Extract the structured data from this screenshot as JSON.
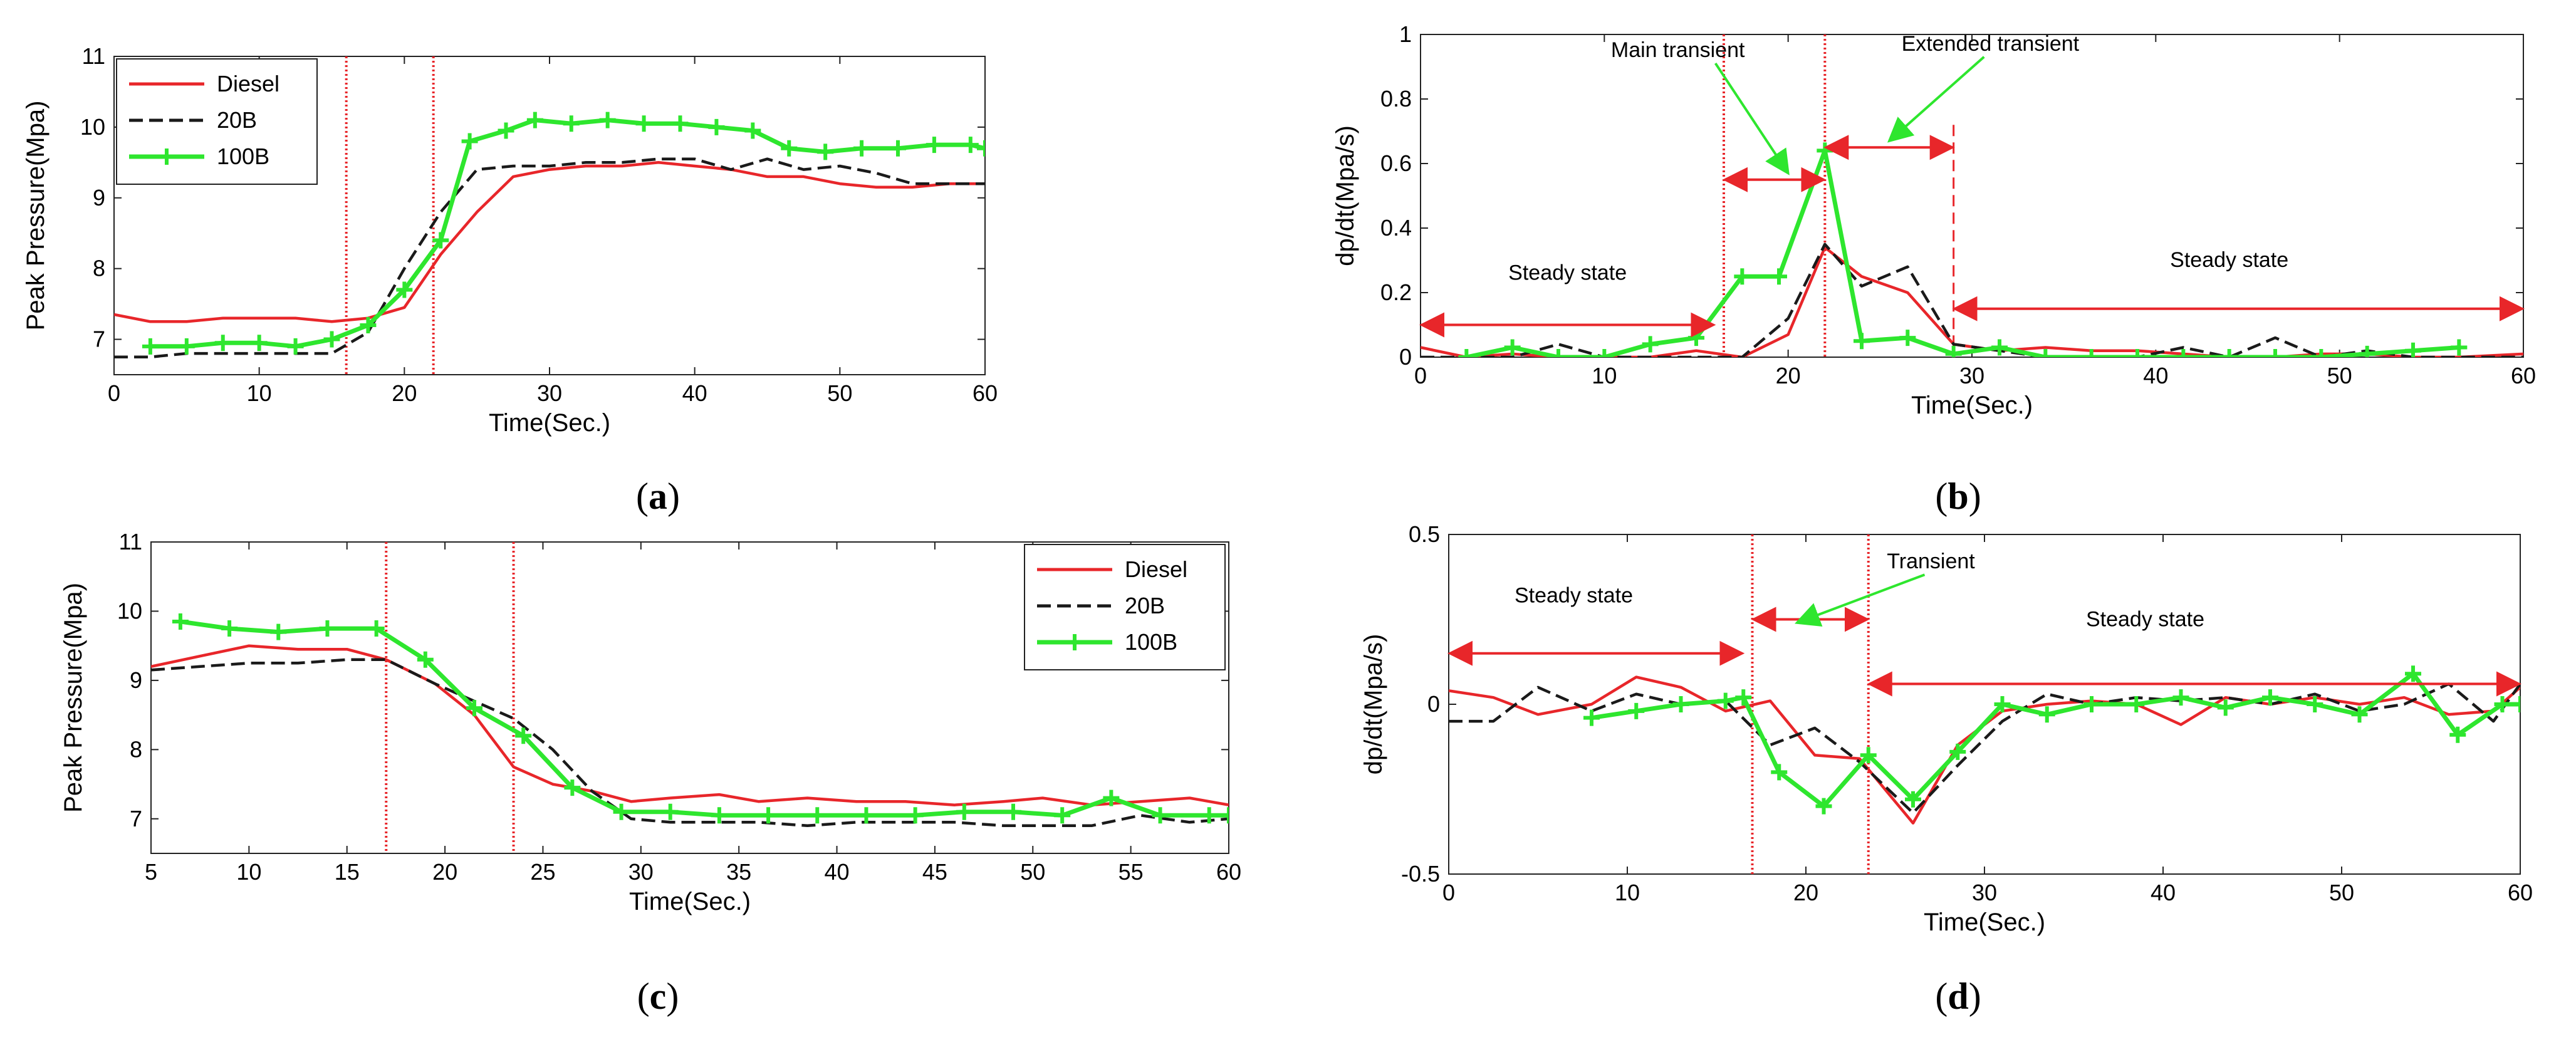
{
  "colors": {
    "diesel": "#e8262a",
    "b20": "#1a1a1a",
    "b100": "#2ee62e",
    "marker_line": "#e8262a",
    "annotation": "#e8262a",
    "callout": "#2ee62e"
  },
  "chart_data": [
    {
      "id": "a",
      "type": "line",
      "caption": {
        "open": "(",
        "letter": "a",
        "close": ")"
      },
      "xlabel": "Time(Sec.)",
      "ylabel": "Peak Pressure(Mpa)",
      "xlim": [
        0,
        60
      ],
      "ylim": [
        6.5,
        11
      ],
      "xticks": [
        0,
        10,
        20,
        30,
        40,
        50,
        60
      ],
      "xtick_labels": [
        "0",
        "10",
        "20",
        "30",
        "40",
        "50",
        "60"
      ],
      "yticks": [
        7,
        8,
        9,
        10,
        11
      ],
      "ytick_labels": [
        "7",
        "8",
        "9",
        "10",
        "11"
      ],
      "legend": {
        "position": "top-left",
        "entries": [
          "Diesel",
          "20B",
          "100B"
        ]
      },
      "vlines": [
        16,
        22
      ],
      "series": [
        {
          "name": "Diesel",
          "color_key": "diesel",
          "style": "solid",
          "x": [
            0,
            2.5,
            5,
            7.5,
            10,
            12.5,
            15,
            17.5,
            20,
            22.5,
            25,
            27.5,
            30,
            32.5,
            35,
            37.5,
            40,
            42.5,
            45,
            47.5,
            50,
            52.5,
            55,
            57.5,
            60
          ],
          "y": [
            7.35,
            7.25,
            7.25,
            7.3,
            7.3,
            7.3,
            7.25,
            7.3,
            7.45,
            8.2,
            8.8,
            9.3,
            9.4,
            9.45,
            9.45,
            9.5,
            9.45,
            9.4,
            9.3,
            9.3,
            9.2,
            9.15,
            9.15,
            9.2,
            9.2
          ]
        },
        {
          "name": "20B",
          "color_key": "b20",
          "style": "dashed",
          "x": [
            0,
            2.5,
            5,
            7.5,
            10,
            12.5,
            15,
            17.5,
            20,
            22.5,
            25,
            27.5,
            30,
            32.5,
            35,
            37.5,
            40,
            42.5,
            45,
            47.5,
            50,
            52.5,
            55,
            57.5,
            60
          ],
          "y": [
            6.75,
            6.75,
            6.8,
            6.8,
            6.8,
            6.8,
            6.8,
            7.1,
            8.0,
            8.8,
            9.4,
            9.45,
            9.45,
            9.5,
            9.5,
            9.55,
            9.55,
            9.4,
            9.55,
            9.4,
            9.45,
            9.35,
            9.2,
            9.2,
            9.2
          ]
        },
        {
          "name": "100B",
          "color_key": "b100",
          "style": "solid-marker",
          "x": [
            2.5,
            5,
            7.5,
            10,
            12.5,
            15,
            17.5,
            20,
            22.5,
            24.5,
            27,
            29,
            31.5,
            34,
            36.5,
            39,
            41.5,
            44,
            46.5,
            49,
            51.5,
            54,
            56.5,
            59,
            60
          ],
          "y": [
            6.9,
            6.9,
            6.95,
            6.95,
            6.9,
            7.0,
            7.2,
            7.7,
            8.4,
            9.8,
            9.95,
            10.1,
            10.05,
            10.1,
            10.05,
            10.05,
            10.0,
            9.95,
            9.7,
            9.65,
            9.7,
            9.7,
            9.75,
            9.75,
            9.7
          ]
        }
      ]
    },
    {
      "id": "b",
      "type": "line",
      "caption": {
        "open": "(",
        "letter": "b",
        "close": ")"
      },
      "xlabel": "Time(Sec.)",
      "ylabel": "dp/dt(Mpa/s)",
      "xlim": [
        0,
        60
      ],
      "ylim": [
        0,
        1
      ],
      "xticks": [
        0,
        10,
        20,
        30,
        40,
        50,
        60
      ],
      "xtick_labels": [
        "0",
        "10",
        "20",
        "30",
        "40",
        "50",
        "60"
      ],
      "yticks": [
        0,
        0.2,
        0.4,
        0.6,
        0.8,
        1
      ],
      "ytick_labels": [
        "0",
        "0.2",
        "0.4",
        "0.6",
        "0.8",
        "1"
      ],
      "vlines": [
        16.5,
        22
      ],
      "dashed_vlines": [
        29
      ],
      "annotations": [
        {
          "text": "Steady state",
          "arrow_from": 0,
          "arrow_to": 16,
          "arrow_y": 0.1,
          "text_x": 8,
          "text_y": 0.24
        },
        {
          "text": "Main transient",
          "arrow_from": 16.5,
          "arrow_to": 22,
          "arrow_y": 0.55,
          "text_x": 14,
          "text_y": 0.93,
          "callout_to_x": 20,
          "callout_to_y": 0.57
        },
        {
          "text": "Extended transient",
          "arrow_from": 22,
          "arrow_to": 29,
          "arrow_y": 0.65,
          "text_x": 31,
          "text_y": 0.95,
          "callout_to_x": 25.5,
          "callout_to_y": 0.67
        },
        {
          "text": "Steady state",
          "arrow_from": 29,
          "arrow_to": 60,
          "arrow_y": 0.15,
          "text_x": 44,
          "text_y": 0.28
        }
      ],
      "series": [
        {
          "name": "Diesel",
          "color_key": "diesel",
          "style": "solid",
          "x": [
            0,
            2.5,
            5,
            7.5,
            10,
            12.5,
            15,
            17.5,
            20,
            22,
            24,
            26.5,
            29,
            31.5,
            34,
            36.5,
            39,
            41.5,
            44,
            46.5,
            49,
            51.5,
            54,
            56.5,
            60
          ],
          "y": [
            0.03,
            0.0,
            0.01,
            0.0,
            0.0,
            0.0,
            0.02,
            0.0,
            0.07,
            0.34,
            0.25,
            0.2,
            0.04,
            0.02,
            0.03,
            0.02,
            0.02,
            0.01,
            0.0,
            0.0,
            0.01,
            0.01,
            0.0,
            0.0,
            0.01
          ]
        },
        {
          "name": "20B",
          "color_key": "b20",
          "style": "dashed",
          "x": [
            0,
            2.5,
            5,
            7.5,
            10,
            12.5,
            15,
            17.5,
            20,
            22,
            24,
            26.5,
            29,
            31.5,
            34,
            36.5,
            39,
            41.5,
            44,
            46.5,
            49,
            51.5,
            54,
            56.5,
            60
          ],
          "y": [
            0.0,
            0.0,
            0.0,
            0.04,
            0.0,
            0.0,
            0.0,
            0.0,
            0.12,
            0.35,
            0.22,
            0.28,
            0.04,
            0.02,
            0.0,
            0.0,
            0.0,
            0.03,
            0.0,
            0.06,
            0.0,
            0.02,
            0.0,
            0.0,
            0.0
          ]
        },
        {
          "name": "100B",
          "color_key": "b100",
          "style": "solid-marker",
          "x": [
            2.5,
            5,
            7.5,
            10,
            12.5,
            15,
            17.5,
            19.5,
            22,
            24,
            26.5,
            29,
            31.5,
            34,
            36.5,
            39,
            41.5,
            44,
            46.5,
            49,
            51.5,
            54,
            56.5
          ],
          "y": [
            0.0,
            0.03,
            0.0,
            0.0,
            0.04,
            0.06,
            0.25,
            0.25,
            0.64,
            0.05,
            0.06,
            0.01,
            0.03,
            0.0,
            0.0,
            0.0,
            0.0,
            0.0,
            0.0,
            0.0,
            0.01,
            0.02,
            0.03
          ]
        }
      ]
    },
    {
      "id": "c",
      "type": "line",
      "caption": {
        "open": "(",
        "letter": "c",
        "close": ")"
      },
      "xlabel": "Time(Sec.)",
      "ylabel": "Peak Pressure(Mpa)",
      "xlim": [
        5,
        60
      ],
      "ylim": [
        6.5,
        11
      ],
      "xticks": [
        5,
        10,
        15,
        20,
        25,
        30,
        35,
        40,
        45,
        50,
        55,
        60
      ],
      "xtick_labels": [
        "5",
        "10",
        "15",
        "20",
        "25",
        "30",
        "35",
        "40",
        "45",
        "50",
        "55",
        "60"
      ],
      "yticks": [
        7,
        8,
        9,
        10,
        11
      ],
      "ytick_labels": [
        "7",
        "8",
        "9",
        "10",
        "11"
      ],
      "legend": {
        "position": "top-right",
        "entries": [
          "Diesel",
          "20B",
          "100B"
        ]
      },
      "vlines": [
        17,
        23.5
      ],
      "series": [
        {
          "name": "Diesel",
          "color_key": "diesel",
          "style": "solid",
          "x": [
            5,
            7.5,
            10,
            12.5,
            15,
            17,
            19.5,
            21.5,
            23.5,
            25.5,
            27.5,
            29.5,
            31.5,
            34,
            36,
            38.5,
            41,
            43.5,
            46,
            48.5,
            50.5,
            53,
            55.5,
            58,
            60
          ],
          "y": [
            9.2,
            9.35,
            9.5,
            9.45,
            9.45,
            9.3,
            8.95,
            8.5,
            7.75,
            7.5,
            7.4,
            7.25,
            7.3,
            7.35,
            7.25,
            7.3,
            7.25,
            7.25,
            7.2,
            7.25,
            7.3,
            7.2,
            7.25,
            7.3,
            7.2
          ]
        },
        {
          "name": "20B",
          "color_key": "b20",
          "style": "dashed",
          "x": [
            5,
            7.5,
            10,
            12.5,
            15,
            17,
            19.5,
            21.5,
            23.5,
            25.5,
            27.5,
            29.5,
            31.5,
            34,
            36,
            38.5,
            41,
            43.5,
            46,
            48.5,
            50.5,
            53,
            55.5,
            58,
            60
          ],
          "y": [
            9.15,
            9.2,
            9.25,
            9.25,
            9.3,
            9.3,
            8.95,
            8.7,
            8.45,
            8.0,
            7.4,
            7.0,
            6.95,
            6.95,
            6.95,
            6.9,
            6.95,
            6.95,
            6.95,
            6.9,
            6.9,
            6.9,
            7.05,
            6.95,
            7.0
          ]
        },
        {
          "name": "100B",
          "color_key": "b100",
          "style": "solid-marker",
          "x": [
            6.5,
            9,
            11.5,
            14,
            16.5,
            19,
            21.5,
            24,
            26.5,
            29,
            31.5,
            34,
            36.5,
            39,
            41.5,
            44,
            46.5,
            49,
            51.5,
            54,
            56.5,
            59,
            60
          ],
          "y": [
            9.85,
            9.75,
            9.7,
            9.75,
            9.75,
            9.3,
            8.6,
            8.2,
            7.45,
            7.1,
            7.1,
            7.05,
            7.05,
            7.05,
            7.05,
            7.05,
            7.1,
            7.1,
            7.05,
            7.3,
            7.05,
            7.05,
            7.05
          ]
        }
      ]
    },
    {
      "id": "d",
      "type": "line",
      "caption": {
        "open": "(",
        "letter": "d",
        "close": ")"
      },
      "xlabel": "Time(Sec.)",
      "ylabel": "dp/dt(Mpa/s)",
      "xlim": [
        0,
        60
      ],
      "ylim": [
        -0.5,
        0.5
      ],
      "xticks": [
        0,
        10,
        20,
        30,
        40,
        50,
        60
      ],
      "xtick_labels": [
        "0",
        "10",
        "20",
        "30",
        "40",
        "50",
        "60"
      ],
      "yticks": [
        -0.5,
        0,
        0.5
      ],
      "ytick_labels": [
        "-0.5",
        "0",
        "0.5"
      ],
      "vlines": [
        17,
        23.5
      ],
      "annotations": [
        {
          "text": "Steady state",
          "arrow_from": 0,
          "arrow_to": 16.5,
          "arrow_y": 0.15,
          "text_x": 7,
          "text_y": 0.3
        },
        {
          "text": "Transient",
          "arrow_from": 17,
          "arrow_to": 23.5,
          "arrow_y": 0.25,
          "text_x": 27,
          "text_y": 0.4,
          "callout_to_x": 19.5,
          "callout_to_y": 0.24
        },
        {
          "text": "Steady state",
          "arrow_from": 23.5,
          "arrow_to": 60,
          "arrow_y": 0.06,
          "text_x": 39,
          "text_y": 0.23
        }
      ],
      "series": [
        {
          "name": "Diesel",
          "color_key": "diesel",
          "style": "solid",
          "x": [
            0,
            2.5,
            5,
            8,
            10.5,
            13,
            15.5,
            18,
            20.5,
            23,
            26,
            28.5,
            31,
            33.5,
            36,
            38.5,
            41,
            43.5,
            46,
            48.5,
            51,
            53.5,
            56,
            58.5,
            60
          ],
          "y": [
            0.04,
            0.02,
            -0.03,
            0.0,
            0.08,
            0.05,
            -0.02,
            0.01,
            -0.15,
            -0.16,
            -0.35,
            -0.12,
            -0.02,
            0.0,
            0.01,
            0.0,
            -0.06,
            0.02,
            0.0,
            0.02,
            0.0,
            0.02,
            -0.03,
            -0.02,
            0.05
          ]
        },
        {
          "name": "20B",
          "color_key": "b20",
          "style": "dashed",
          "x": [
            0,
            2.5,
            5,
            8,
            10.5,
            13,
            15.5,
            18,
            20.5,
            23,
            26,
            28.5,
            31,
            33.5,
            36,
            38.5,
            41,
            43.5,
            46,
            48.5,
            51,
            53.5,
            56,
            58.5,
            60
          ],
          "y": [
            -0.05,
            -0.05,
            0.05,
            -0.02,
            0.03,
            0.0,
            0.01,
            -0.12,
            -0.07,
            -0.17,
            -0.32,
            -0.18,
            -0.05,
            0.03,
            0.0,
            0.02,
            0.01,
            0.02,
            0.0,
            0.03,
            -0.02,
            0.0,
            0.06,
            -0.05,
            0.06
          ]
        },
        {
          "name": "100B",
          "color_key": "b100",
          "style": "solid-marker",
          "x": [
            8,
            10.5,
            13,
            15.5,
            16.5,
            18.5,
            21,
            23.5,
            26,
            28.5,
            31,
            33.5,
            36,
            38.5,
            41,
            43.5,
            46,
            48.5,
            51,
            54,
            56.5,
            59,
            60
          ],
          "y": [
            -0.04,
            -0.02,
            0.0,
            0.01,
            0.02,
            -0.2,
            -0.3,
            -0.15,
            -0.28,
            -0.14,
            0.0,
            -0.03,
            0.0,
            0.0,
            0.02,
            -0.01,
            0.02,
            0.0,
            -0.03,
            0.09,
            -0.09,
            0.0,
            0.0
          ]
        }
      ]
    }
  ]
}
